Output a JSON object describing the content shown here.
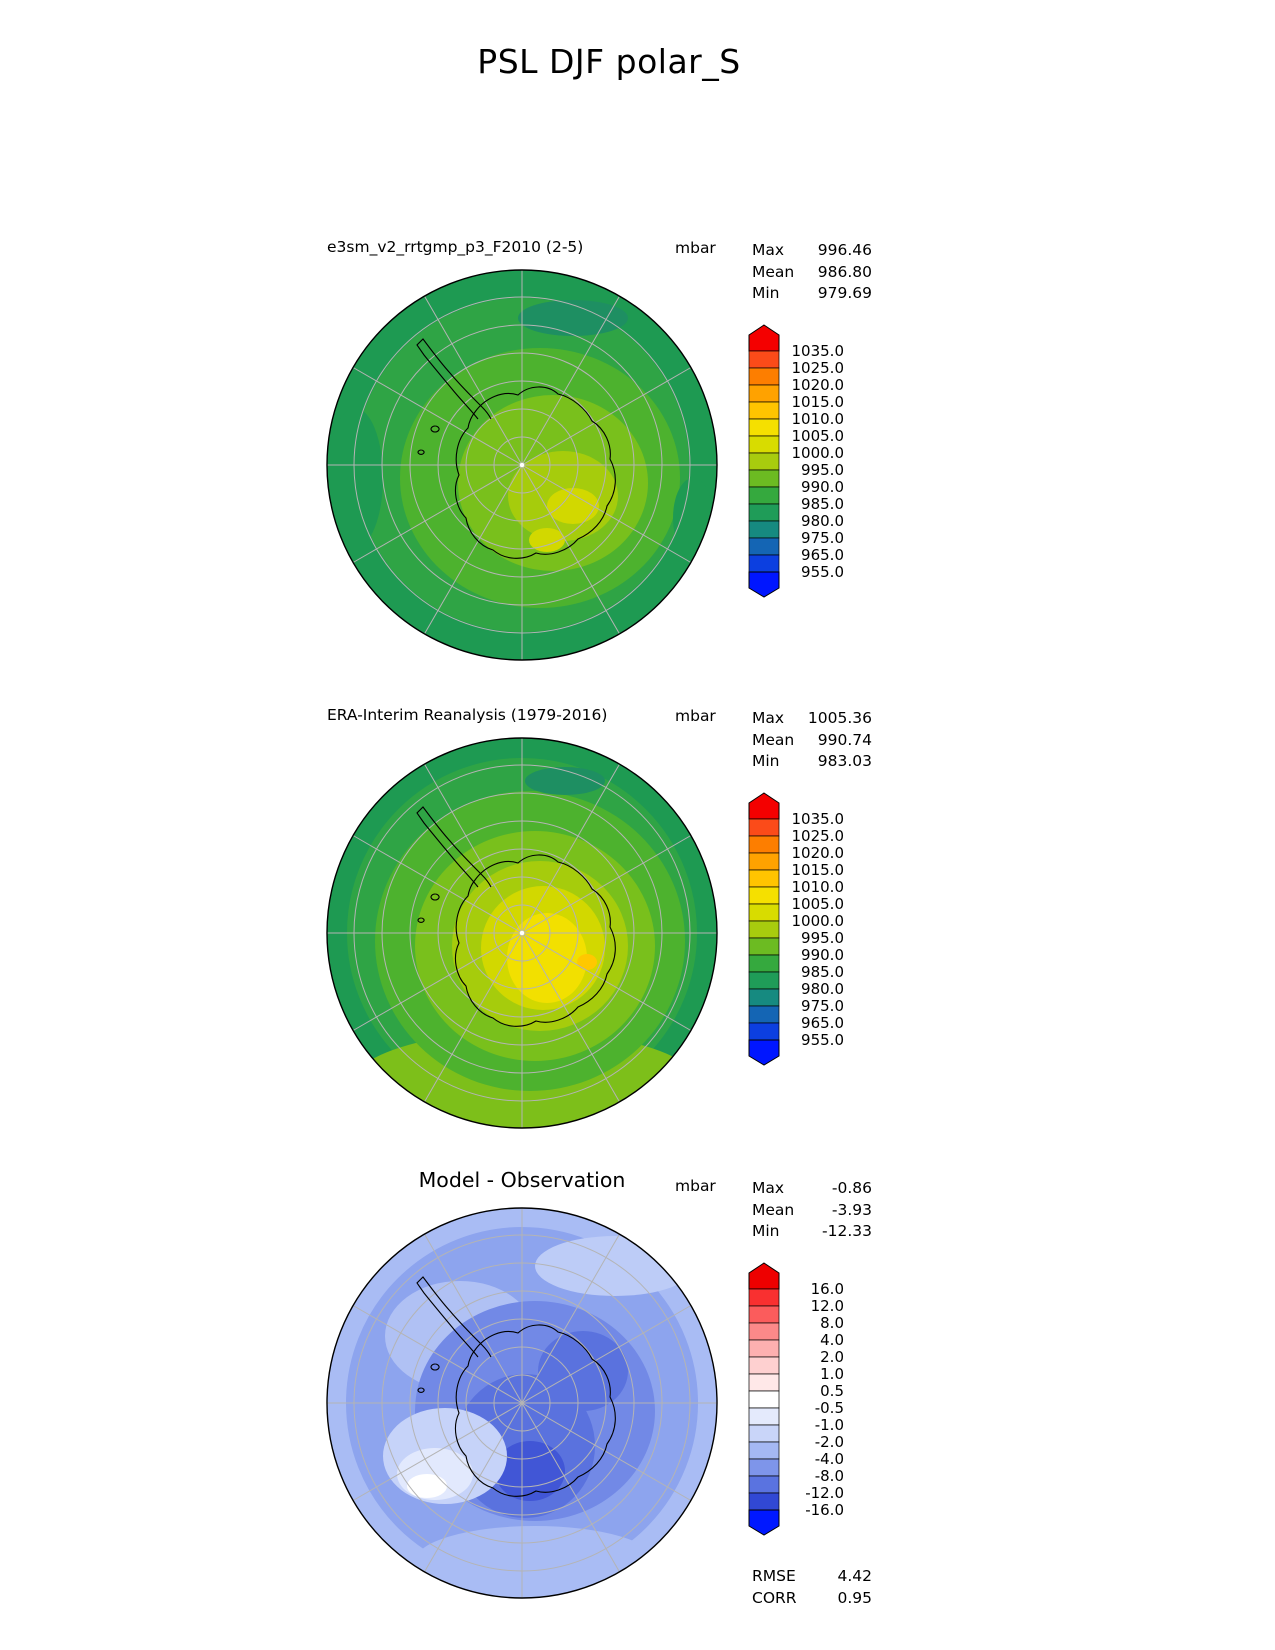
{
  "title": "PSL DJF polar_S",
  "panels": [
    {
      "subtitle": "e3sm_v2_rrtgmp_p3_F2010 (2-5)",
      "units": "mbar",
      "stats": {
        "rows": [
          {
            "label": "Max",
            "value": "996.46"
          },
          {
            "label": "Mean",
            "value": "986.80"
          },
          {
            "label": "Min",
            "value": "979.69"
          }
        ]
      },
      "colorbar": {
        "ticks": [
          "1035.0",
          "1025.0",
          "1020.0",
          "1015.0",
          "1010.0",
          "1005.0",
          "1000.0",
          "995.0",
          "990.0",
          "985.0",
          "980.0",
          "975.0",
          "965.0",
          "955.0"
        ],
        "cell_colors": [
          "#fb4b19",
          "#fd7e00",
          "#ffa200",
          "#ffc400",
          "#f5e000",
          "#d8dc00",
          "#a8cc0e",
          "#6cbb22",
          "#35a93e",
          "#1f9c58",
          "#168a80",
          "#1465b4",
          "#0c3fe0"
        ],
        "arrow_high": "#f40000",
        "arrow_low": "#0016ff"
      }
    },
    {
      "subtitle": "ERA-Interim Reanalysis (1979-2016)",
      "units": "mbar",
      "stats": {
        "rows": [
          {
            "label": "Max",
            "value": "1005.36"
          },
          {
            "label": "Mean",
            "value": "990.74"
          },
          {
            "label": "Min",
            "value": "983.03"
          }
        ]
      },
      "colorbar": {
        "ticks": [
          "1035.0",
          "1025.0",
          "1020.0",
          "1015.0",
          "1010.0",
          "1005.0",
          "1000.0",
          "995.0",
          "990.0",
          "985.0",
          "980.0",
          "975.0",
          "965.0",
          "955.0"
        ],
        "cell_colors": [
          "#fb4b19",
          "#fd7e00",
          "#ffa200",
          "#ffc400",
          "#f5e000",
          "#d8dc00",
          "#a8cc0e",
          "#6cbb22",
          "#35a93e",
          "#1f9c58",
          "#168a80",
          "#1465b4",
          "#0c3fe0"
        ],
        "arrow_high": "#f40000",
        "arrow_low": "#0016ff"
      }
    },
    {
      "subtitle": "Model - Observation",
      "units": "mbar",
      "stats": {
        "rows": [
          {
            "label": "Max",
            "value": "-0.86"
          },
          {
            "label": "Mean",
            "value": "-3.93"
          },
          {
            "label": "Min",
            "value": "-12.33"
          }
        ]
      },
      "colorbar": {
        "ticks": [
          "16.0",
          "12.0",
          "8.0",
          "4.0",
          "2.0",
          "1.0",
          "0.5",
          "-0.5",
          "-1.0",
          "-2.0",
          "-4.0",
          "-8.0",
          "-12.0",
          "-16.0"
        ],
        "cell_colors": [
          "#f93030",
          "#fb5c5c",
          "#fc8989",
          "#fdb0b0",
          "#fed0d0",
          "#ffe8e8",
          "#ffffff",
          "#e4eafc",
          "#c9d5f9",
          "#a5b8f3",
          "#7e95ea",
          "#5a73e0",
          "#3148d4"
        ],
        "arrow_high": "#ee0000",
        "arrow_low": "#0018ff"
      },
      "footer": {
        "rows": [
          {
            "label": "RMSE",
            "value": "4.42"
          },
          {
            "label": "CORR",
            "value": "0.95"
          }
        ]
      }
    }
  ],
  "chart_data": {
    "type": "heatmap",
    "subtype": "filled_contour_polar_maps",
    "projection": "south_polar",
    "variable": "PSL",
    "season": "DJF",
    "region": "polar_S",
    "units": "mbar",
    "title": "PSL DJF polar_S",
    "panels": [
      {
        "name": "e3sm_v2_rrtgmp_p3_F2010 (2-5)",
        "max": 996.46,
        "mean": 986.8,
        "min": 979.69,
        "contour_levels": [
          955,
          965,
          975,
          980,
          985,
          990,
          995,
          1000,
          1005,
          1010,
          1015,
          1020,
          1025,
          1035
        ]
      },
      {
        "name": "ERA-Interim Reanalysis (1979-2016)",
        "max": 1005.36,
        "mean": 990.74,
        "min": 983.03,
        "contour_levels": [
          955,
          965,
          975,
          980,
          985,
          990,
          995,
          1000,
          1005,
          1010,
          1015,
          1020,
          1025,
          1035
        ]
      },
      {
        "name": "Model - Observation",
        "max": -0.86,
        "mean": -3.93,
        "min": -12.33,
        "contour_levels": [
          -16,
          -12,
          -8,
          -4,
          -2,
          -1,
          -0.5,
          0.5,
          1,
          2,
          4,
          8,
          12,
          16
        ],
        "rmse": 4.42,
        "corr": 0.95
      }
    ]
  }
}
